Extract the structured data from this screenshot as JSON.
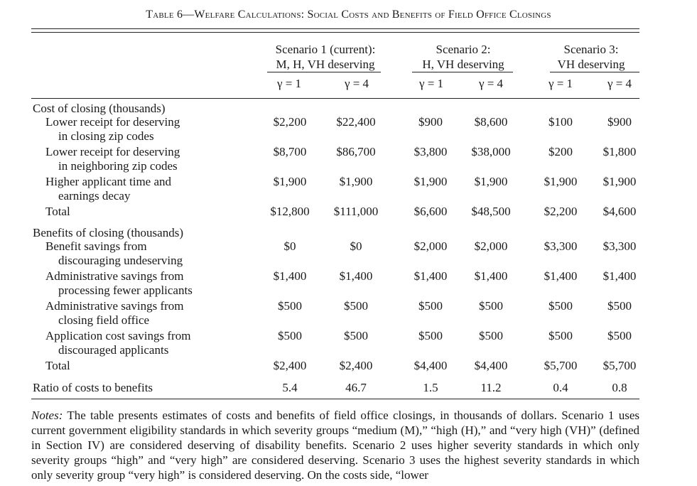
{
  "title": "Table 6—Welfare Calculations: Social Costs and Benefits of Field Office Closings",
  "scenarios": [
    {
      "line1": "Scenario 1 (current):",
      "line2": "M, H, VH deserving"
    },
    {
      "line1": "Scenario 2:",
      "line2": "H, VH deserving"
    },
    {
      "line1": "Scenario 3:",
      "line2": "VH deserving"
    }
  ],
  "gamma_labels": [
    "γ = 1",
    "γ = 4",
    "γ = 1",
    "γ = 4",
    "γ = 1",
    "γ = 4"
  ],
  "sections": [
    {
      "header": "Cost of closing (thousands)"
    },
    {
      "header": "Benefits of closing (thousands)"
    }
  ],
  "rows": [
    {
      "label1": "Lower receipt for deserving",
      "label2": "in closing zip codes",
      "values": [
        "$2,200",
        "$22,400",
        "$900",
        "$8,600",
        "$100",
        "$900"
      ]
    },
    {
      "label1": "Lower receipt for deserving",
      "label2": "in neighboring zip codes",
      "values": [
        "$8,700",
        "$86,700",
        "$3,800",
        "$38,000",
        "$200",
        "$1,800"
      ]
    },
    {
      "label1": "Higher applicant time and",
      "label2": "earnings decay",
      "values": [
        "$1,900",
        "$1,900",
        "$1,900",
        "$1,900",
        "$1,900",
        "$1,900"
      ]
    },
    {
      "label1": "Total",
      "label2": "",
      "values": [
        "$12,800",
        "$111,000",
        "$6,600",
        "$48,500",
        "$2,200",
        "$4,600"
      ]
    },
    {
      "label1": "Benefit savings from",
      "label2": "discouraging undeserving",
      "values": [
        "$0",
        "$0",
        "$2,000",
        "$2,000",
        "$3,300",
        "$3,300"
      ]
    },
    {
      "label1": "Administrative savings from",
      "label2": "processing fewer applicants",
      "values": [
        "$1,400",
        "$1,400",
        "$1,400",
        "$1,400",
        "$1,400",
        "$1,400"
      ]
    },
    {
      "label1": "Administrative savings from",
      "label2": "closing field office",
      "values": [
        "$500",
        "$500",
        "$500",
        "$500",
        "$500",
        "$500"
      ]
    },
    {
      "label1": "Application cost savings from",
      "label2": "discouraged applicants",
      "values": [
        "$500",
        "$500",
        "$500",
        "$500",
        "$500",
        "$500"
      ]
    },
    {
      "label1": "Total",
      "label2": "",
      "values": [
        "$2,400",
        "$2,400",
        "$4,400",
        "$4,400",
        "$5,700",
        "$5,700"
      ]
    },
    {
      "label1": "Ratio of costs to benefits",
      "label2": "",
      "values": [
        "5.4",
        "46.7",
        "1.5",
        "11.2",
        "0.4",
        "0.8"
      ]
    }
  ],
  "notes": {
    "lead": "Notes:",
    "text": "The table presents estimates of costs and benefits of field office closings, in thousands of dollars. Scenario 1 uses current government eligibility standards in which severity groups “medium (M),” “high (H),” and “very high (VH)” (defined in Section IV) are considered deserving of disability benefits. Scenario 2 uses higher severity standards in which only severity groups “high” and “very high” are considered deserving. Scenario 3 uses the highest severity standards in which only severity group “very high” is considered deserving. On the costs side, “lower"
  }
}
